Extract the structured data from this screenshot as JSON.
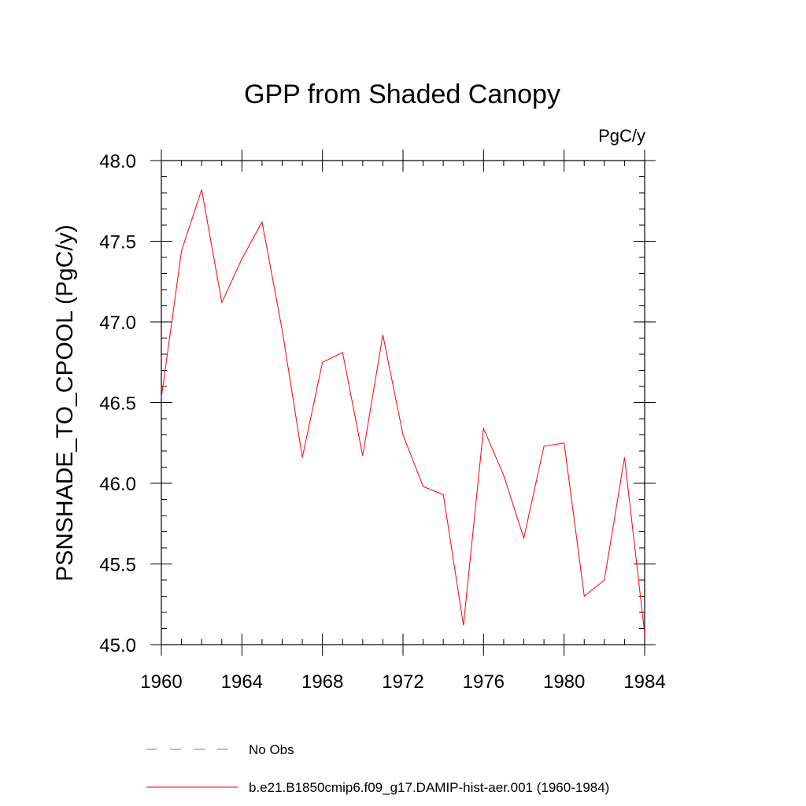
{
  "chart_data": {
    "type": "line",
    "title": "GPP from Shaded Canopy",
    "units_label": "PgC/y",
    "xlabel": "",
    "ylabel": "PSNSHADE_TO_CPOOL  (PgC/y)",
    "xlim": [
      1960,
      1984
    ],
    "ylim": [
      45.0,
      48.0
    ],
    "x_ticks": [
      1960,
      1964,
      1968,
      1972,
      1976,
      1980,
      1984
    ],
    "x_tick_labels": [
      "1960",
      "1964",
      "1968",
      "1972",
      "1976",
      "1980",
      "1984"
    ],
    "y_ticks": [
      45.0,
      45.5,
      46.0,
      46.5,
      47.0,
      47.5,
      48.0
    ],
    "y_tick_labels": [
      "45.0",
      "45.5",
      "46.0",
      "46.5",
      "47.0",
      "47.5",
      "48.0"
    ],
    "grid": false,
    "legend_position": "bottom",
    "series": [
      {
        "name": "b.e21.B1850cmip6.f09_g17.DAMIP-hist-aer.001 (1960-1984)",
        "color": "#ff0000",
        "style": "solid",
        "x": [
          1960,
          1961,
          1962,
          1963,
          1964,
          1965,
          1966,
          1967,
          1968,
          1969,
          1970,
          1971,
          1972,
          1973,
          1974,
          1975,
          1976,
          1977,
          1978,
          1979,
          1980,
          1981,
          1982,
          1983,
          1984
        ],
        "values": [
          46.53,
          47.44,
          47.82,
          47.12,
          47.39,
          47.62,
          46.95,
          46.16,
          46.75,
          46.81,
          46.17,
          46.92,
          46.3,
          45.98,
          45.93,
          45.12,
          46.34,
          46.05,
          45.66,
          46.23,
          46.25,
          45.3,
          45.4,
          46.16,
          45.07
        ]
      }
    ],
    "legend": [
      {
        "label": "No Obs",
        "color": "#7b68ee",
        "style": "dashed"
      },
      {
        "label": "b.e21.B1850cmip6.f09_g17.DAMIP-hist-aer.001 (1960-1984)",
        "color": "#ff0000",
        "style": "solid"
      }
    ]
  }
}
